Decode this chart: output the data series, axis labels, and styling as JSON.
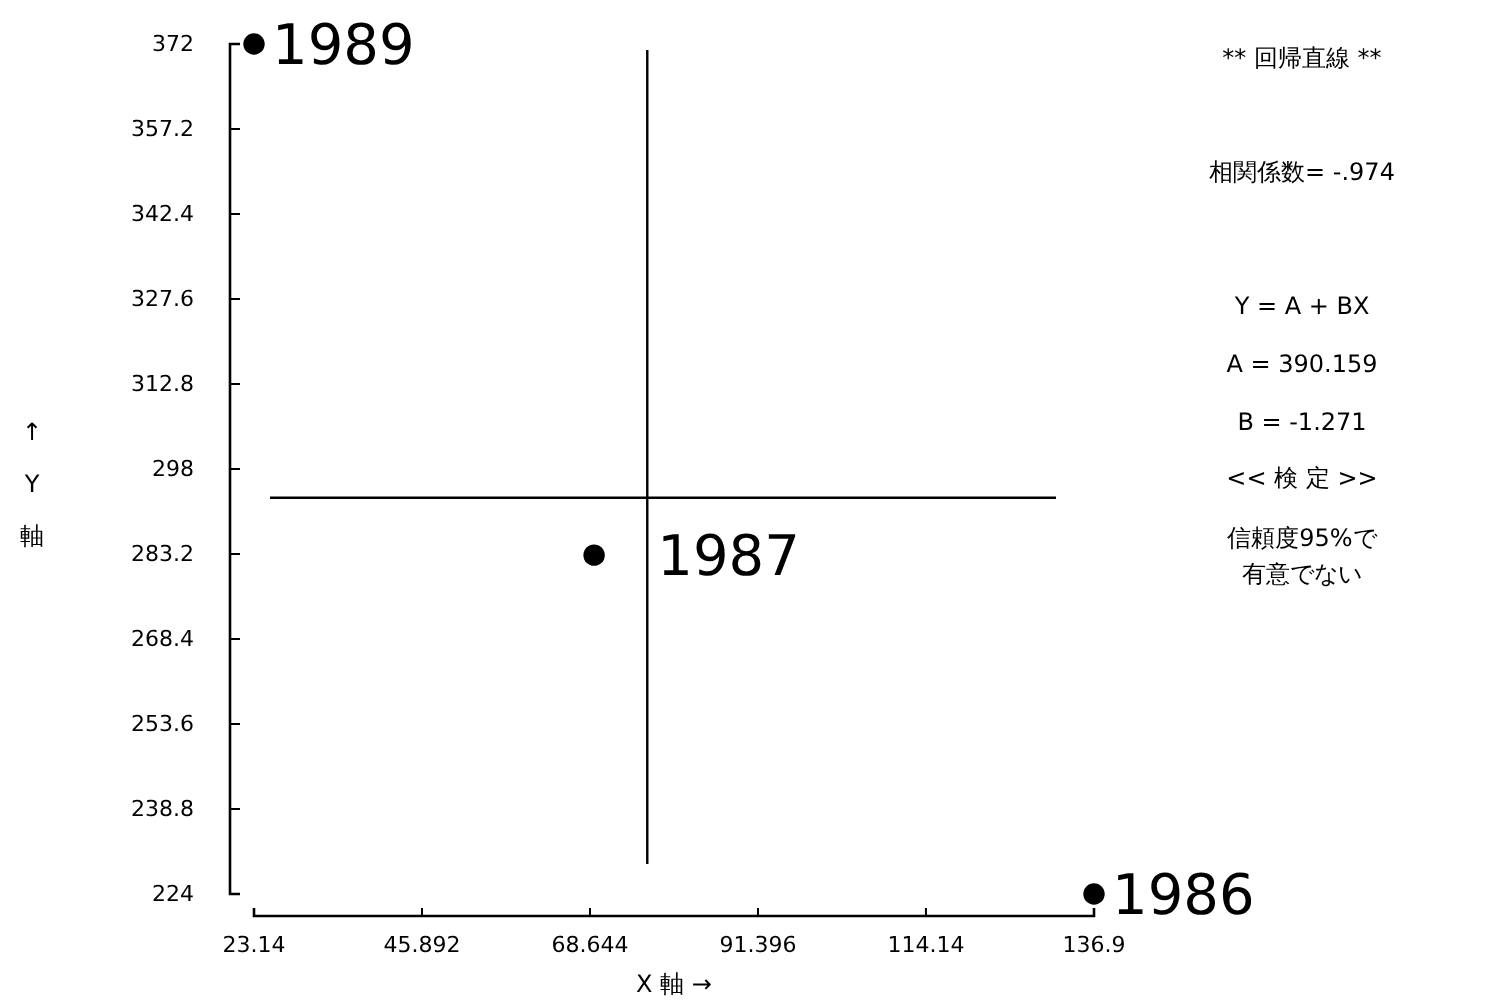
{
  "chart_data": {
    "type": "scatter",
    "title": "** 回帰直線 **",
    "xlabel": "X 軸 →",
    "ylabel": "↑Y軸",
    "x": [
      23.14,
      69.2,
      136.9
    ],
    "series": [
      {
        "color": "#000000",
        "values": [
          372,
          283,
          224
        ]
      }
    ],
    "marker": "circle",
    "grid": false,
    "xlim": [
      23.14,
      136.9
    ],
    "xticks": [
      23.14,
      45.892,
      68.644,
      91.396,
      114.14,
      136.9
    ],
    "ylim": [
      224,
      372
    ],
    "yticks": [
      224,
      238.8,
      253.6,
      268.4,
      283.2,
      298,
      312.8,
      327.6,
      342.4,
      357.2,
      372
    ],
    "ref_lines": [
      {
        "axis": "x",
        "value": 76.4
      },
      {
        "axis": "y",
        "value": 293
      }
    ],
    "annotations": [
      {
        "text": "1989",
        "x": 23.14,
        "y": 372
      },
      {
        "text": "1987",
        "x": 69.2,
        "y": 283
      },
      {
        "text": "1986",
        "x": 136.9,
        "y": 224
      },
      "相関係数= -.974",
      "Y = A + BX",
      "A = 390.159",
      "B = -1.271",
      "<< 検 定 >>",
      "信頼度95%で",
      "有意でない"
    ]
  }
}
